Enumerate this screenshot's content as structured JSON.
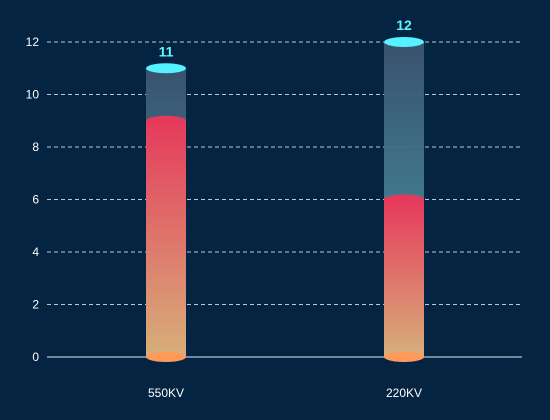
{
  "chart_data": {
    "type": "bar",
    "categories": [
      "550KV",
      "220KV"
    ],
    "series": [
      {
        "values": [
          9,
          6
        ]
      },
      {
        "values": [
          11,
          12
        ]
      }
    ],
    "totals": [
      11,
      12
    ],
    "ylim": [
      0,
      12
    ],
    "yticks": [
      0,
      2,
      4,
      6,
      8,
      10,
      12
    ],
    "grid": true,
    "colors": {
      "background": "#042441",
      "inner_top": "#e63a5c",
      "inner_bottom": "#d7b07a",
      "base_cap": "#ff9a5a",
      "outer_top": "#3c5470",
      "outer_bottom": "#4aa6b4",
      "outer_cap": "#55f2ff",
      "total_label": "#5ef6ff",
      "grid": "#ffffff"
    }
  }
}
